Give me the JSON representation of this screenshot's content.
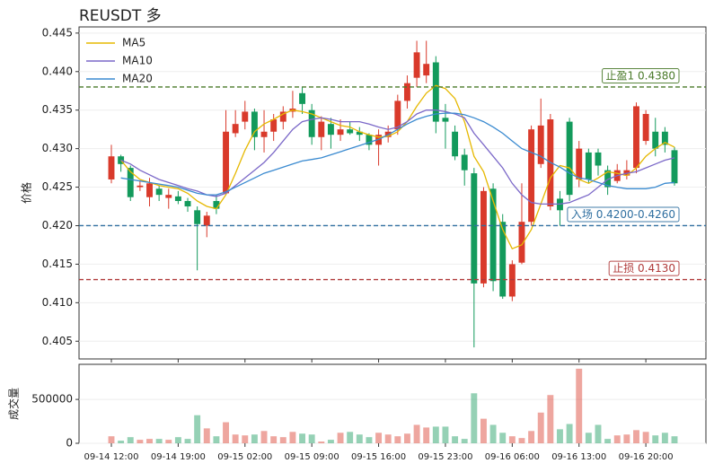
{
  "chart_data": {
    "type": "candlestick",
    "title": "REUSDT 多",
    "y_label": "价格",
    "legend": "upper left",
    "up_color": "#d93a2b",
    "down_color": "#139a5c",
    "x": [
      "09-14 12:00",
      "09-14 13:00",
      "09-14 14:00",
      "09-14 15:00",
      "09-14 16:00",
      "09-14 17:00",
      "09-14 18:00",
      "09-14 19:00",
      "09-14 20:00",
      "09-14 21:00",
      "09-14 22:00",
      "09-14 23:00",
      "09-15 00:00",
      "09-15 01:00",
      "09-15 02:00",
      "09-15 03:00",
      "09-15 04:00",
      "09-15 05:00",
      "09-15 06:00",
      "09-15 07:00",
      "09-15 08:00",
      "09-15 09:00",
      "09-15 10:00",
      "09-15 11:00",
      "09-15 12:00",
      "09-15 13:00",
      "09-15 14:00",
      "09-15 15:00",
      "09-15 16:00",
      "09-15 17:00",
      "09-15 18:00",
      "09-15 19:00",
      "09-15 20:00",
      "09-15 21:00",
      "09-15 22:00",
      "09-15 23:00",
      "09-16 00:00",
      "09-16 01:00",
      "09-16 02:00",
      "09-16 03:00",
      "09-16 04:00",
      "09-16 05:00",
      "09-16 06:00",
      "09-16 07:00",
      "09-16 08:00",
      "09-16 09:00",
      "09-16 10:00",
      "09-16 11:00",
      "09-16 12:00",
      "09-16 13:00",
      "09-16 14:00",
      "09-16 15:00",
      "09-16 16:00",
      "09-16 17:00",
      "09-16 18:00",
      "09-16 19:00",
      "09-16 20:00",
      "09-16 21:00",
      "09-16 22:00",
      "09-16 23:00"
    ],
    "xticks": [
      {
        "value": 0,
        "label": "09-14 12:00"
      },
      {
        "value": 7,
        "label": "09-14 19:00"
      },
      {
        "value": 14,
        "label": "09-15 02:00"
      },
      {
        "value": 21,
        "label": "09-15 09:00"
      },
      {
        "value": 28,
        "label": "09-15 16:00"
      },
      {
        "value": 35,
        "label": "09-15 23:00"
      },
      {
        "value": 42,
        "label": "09-16 06:00"
      },
      {
        "value": 49,
        "label": "09-16 13:00"
      },
      {
        "value": 56,
        "label": "09-16 20:00"
      }
    ],
    "open": [
      0.426,
      0.429,
      0.4275,
      0.425,
      0.4237,
      0.4248,
      0.4236,
      0.4238,
      0.4232,
      0.422,
      0.42,
      0.4232,
      0.4242,
      0.432,
      0.4335,
      0.4348,
      0.4315,
      0.4322,
      0.4335,
      0.4348,
      0.4372,
      0.435,
      0.4315,
      0.4332,
      0.4318,
      0.4325,
      0.4322,
      0.4318,
      0.4305,
      0.4315,
      0.4325,
      0.4362,
      0.4392,
      0.4395,
      0.4412,
      0.434,
      0.4322,
      0.4292,
      0.4268,
      0.4125,
      0.4248,
      0.4205,
      0.4108,
      0.4152,
      0.4205,
      0.428,
      0.4225,
      0.4235,
      0.4335,
      0.426,
      0.4295,
      0.4295,
      0.4272,
      0.4258,
      0.4265,
      0.4275,
      0.431,
      0.4322,
      0.4322,
      0.4298
    ],
    "high": [
      0.4305,
      0.4292,
      0.4278,
      0.4258,
      0.4262,
      0.4252,
      0.4248,
      0.4245,
      0.4236,
      0.4225,
      0.4218,
      0.424,
      0.435,
      0.435,
      0.4362,
      0.4352,
      0.435,
      0.4345,
      0.4355,
      0.4375,
      0.438,
      0.4358,
      0.4342,
      0.434,
      0.4338,
      0.4335,
      0.4328,
      0.432,
      0.4325,
      0.433,
      0.437,
      0.4395,
      0.444,
      0.444,
      0.442,
      0.4358,
      0.433,
      0.43,
      0.4275,
      0.425,
      0.4255,
      0.4215,
      0.4155,
      0.4255,
      0.433,
      0.4365,
      0.4345,
      0.4245,
      0.434,
      0.431,
      0.43,
      0.43,
      0.4278,
      0.428,
      0.4285,
      0.436,
      0.435,
      0.434,
      0.4328,
      0.4302
    ],
    "low": [
      0.4255,
      0.427,
      0.4232,
      0.4245,
      0.4225,
      0.4232,
      0.4222,
      0.4228,
      0.4218,
      0.4142,
      0.4185,
      0.4215,
      0.424,
      0.4315,
      0.4325,
      0.4298,
      0.4295,
      0.431,
      0.4325,
      0.434,
      0.4345,
      0.4305,
      0.4298,
      0.43,
      0.431,
      0.4318,
      0.431,
      0.4298,
      0.4278,
      0.4308,
      0.4318,
      0.4352,
      0.438,
      0.4385,
      0.432,
      0.43,
      0.4285,
      0.4252,
      0.4042,
      0.412,
      0.4115,
      0.4105,
      0.4102,
      0.415,
      0.42,
      0.4275,
      0.422,
      0.42,
      0.4232,
      0.425,
      0.4255,
      0.4265,
      0.424,
      0.4255,
      0.426,
      0.4268,
      0.4305,
      0.429,
      0.4295,
      0.4252
    ],
    "close": [
      0.429,
      0.428,
      0.4237,
      0.4252,
      0.4255,
      0.424,
      0.424,
      0.4232,
      0.4225,
      0.4202,
      0.4213,
      0.4222,
      0.4322,
      0.4332,
      0.4348,
      0.4315,
      0.4322,
      0.4338,
      0.4348,
      0.4352,
      0.4358,
      0.4315,
      0.4335,
      0.4318,
      0.4325,
      0.432,
      0.4318,
      0.4305,
      0.4318,
      0.4322,
      0.4362,
      0.4385,
      0.4425,
      0.441,
      0.4335,
      0.4335,
      0.429,
      0.4272,
      0.4125,
      0.4245,
      0.4128,
      0.4108,
      0.415,
      0.4205,
      0.4325,
      0.433,
      0.4338,
      0.422,
      0.424,
      0.43,
      0.426,
      0.4278,
      0.425,
      0.4272,
      0.4272,
      0.4355,
      0.4345,
      0.43,
      0.4305,
      0.4255
    ],
    "series": [
      {
        "name": "MA5",
        "color": "#e6b800",
        "values": [
          null,
          0.4285,
          0.427,
          0.426,
          0.4256,
          0.4252,
          0.425,
          0.4248,
          0.4242,
          0.4232,
          0.4225,
          0.4222,
          0.424,
          0.4268,
          0.4298,
          0.4322,
          0.4332,
          0.4338,
          0.4345,
          0.435,
          0.4348,
          0.4345,
          0.434,
          0.4335,
          0.433,
          0.4328,
          0.4322,
          0.4318,
          0.4315,
          0.4316,
          0.4322,
          0.4335,
          0.4355,
          0.4372,
          0.4382,
          0.4378,
          0.4365,
          0.4335,
          0.429,
          0.427,
          0.4232,
          0.4195,
          0.417,
          0.4175,
          0.4195,
          0.4228,
          0.4262,
          0.4278,
          0.4275,
          0.426,
          0.4255,
          0.4262,
          0.427,
          0.4268,
          0.4265,
          0.4275,
          0.429,
          0.43,
          0.4308,
          0.4302
        ]
      },
      {
        "name": "MA10",
        "color": "#7b68c8",
        "values": [
          null,
          0.4285,
          0.428,
          0.4272,
          0.4266,
          0.426,
          0.4256,
          0.4252,
          0.4248,
          0.4245,
          0.424,
          0.4238,
          0.4242,
          0.4252,
          0.4262,
          0.4272,
          0.4282,
          0.4295,
          0.431,
          0.4325,
          0.4335,
          0.4338,
          0.434,
          0.4338,
          0.4335,
          0.4335,
          0.4335,
          0.4332,
          0.4328,
          0.4325,
          0.4328,
          0.4335,
          0.4345,
          0.435,
          0.435,
          0.4348,
          0.4345,
          0.434,
          0.432,
          0.4305,
          0.429,
          0.4275,
          0.4255,
          0.424,
          0.423,
          0.4228,
          0.4228,
          0.4228,
          0.423,
          0.4235,
          0.424,
          0.425,
          0.426,
          0.4265,
          0.4268,
          0.427,
          0.4275,
          0.428,
          0.4285,
          0.4288
        ]
      },
      {
        "name": "MA20",
        "color": "#3a8ad0",
        "values": [
          null,
          0.4262,
          0.426,
          0.4258,
          0.4256,
          0.4254,
          0.4252,
          0.425,
          0.4246,
          0.4242,
          0.424,
          0.424,
          0.4244,
          0.425,
          0.4256,
          0.4262,
          0.4268,
          0.4272,
          0.4276,
          0.428,
          0.4284,
          0.4286,
          0.4288,
          0.4292,
          0.4296,
          0.43,
          0.4304,
          0.4308,
          0.4312,
          0.4318,
          0.4325,
          0.4332,
          0.4338,
          0.4342,
          0.4345,
          0.4346,
          0.4346,
          0.4344,
          0.434,
          0.4335,
          0.4328,
          0.432,
          0.431,
          0.43,
          0.4295,
          0.429,
          0.4282,
          0.4276,
          0.4268,
          0.4262,
          0.426,
          0.4256,
          0.4252,
          0.425,
          0.4248,
          0.4248,
          0.4248,
          0.425,
          0.4255,
          0.4256
        ]
      }
    ],
    "hlines": [
      {
        "value": 0.438,
        "label": "止盈1 0.4380",
        "color": "#4a7a2a"
      },
      {
        "value": 0.42,
        "label": "入场 0.4200-0.4260",
        "color": "#2f6fa0"
      },
      {
        "value": 0.413,
        "label": "止损 0.4130",
        "color": "#b03a3a"
      }
    ],
    "ylim": [
      0.4027,
      0.4458
    ],
    "yticks": [
      0.405,
      {
        "value": 0.41,
        "label": "0.410"
      },
      0.415,
      {
        "value": 0.42,
        "label": "0.420"
      },
      0.425,
      {
        "value": 0.43,
        "label": "0.430"
      },
      0.435,
      {
        "value": 0.44,
        "label": "0.440"
      },
      0.445
    ],
    "volume": {
      "y_label": "成交量",
      "ylim": [
        0,
        900000
      ],
      "yticks": [
        0,
        500000
      ],
      "values": [
        80000,
        30000,
        70000,
        40000,
        50000,
        50000,
        40000,
        70000,
        50000,
        320000,
        170000,
        80000,
        240000,
        100000,
        90000,
        100000,
        140000,
        80000,
        70000,
        130000,
        110000,
        100000,
        20000,
        40000,
        120000,
        130000,
        100000,
        70000,
        120000,
        100000,
        80000,
        110000,
        210000,
        180000,
        190000,
        190000,
        80000,
        50000,
        570000,
        280000,
        210000,
        120000,
        80000,
        60000,
        140000,
        350000,
        550000,
        160000,
        220000,
        850000,
        120000,
        210000,
        50000,
        90000,
        100000,
        150000,
        130000,
        90000,
        120000,
        80000
      ]
    }
  }
}
